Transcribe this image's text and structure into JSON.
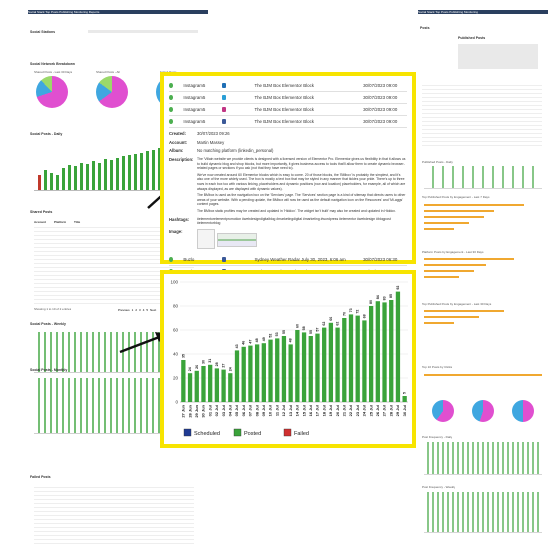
{
  "left_page": {
    "nav_text": "Social Stack    Top Posts    Publishing    Monitoring    Reports",
    "section_title": "Social Stations",
    "pie_section_title": "Social Network Breakdown",
    "pie_titles": [
      "Shared Posts - Last 30 Days",
      "Shared Posts - All",
      "Failed Posts"
    ],
    "chart1_title": "Social Posts - Daily",
    "table1_title": "Shared Posts",
    "table_columns": [
      "Account",
      "Platform",
      "Title",
      "Scheduled"
    ],
    "chart2_title": "Social Posts - Weekly",
    "chart3_title": "Social Posts - Monthly",
    "table2_title": "Failed Posts",
    "showing_text": "Showing 1 to 10 of 2 entries",
    "pager": [
      "Previous",
      "1",
      "2",
      "3",
      "4",
      "5",
      "Next"
    ]
  },
  "right_page": {
    "nav_text": "Social Stack    Top Posts    Publishing    Monitoring",
    "section_title": "Posts",
    "sub_title": "Published Posts",
    "chart_titles": [
      "Published Posts - Daily",
      "Top Published Posts by Engagement - Last 7 Days",
      "Platform Posts by Engagement - Last 30 Days",
      "Top Published Posts by Engagement - Last 30 Days",
      "Top 10 Posts by Clicks",
      "Post Frequency - Daily",
      "Post Frequency - Weekly"
    ]
  },
  "zoom_top": {
    "rows_top": [
      {
        "account": "Instagram5",
        "title": "The BJM Box Elementor Block",
        "date": "30/07/2023 09:00"
      },
      {
        "account": "Instagram5",
        "title": "The BJM Box Elementor Block",
        "date": "30/07/2023 09:00"
      },
      {
        "account": "Instagram5",
        "title": "The BJM Box Elementor Block",
        "date": "30/07/2023 09:00"
      },
      {
        "account": "Instagram5",
        "title": "The BJM Box Elementor Block",
        "date": "30/07/2023 09:00"
      }
    ],
    "details": {
      "created_label": "Created:",
      "created_value": "30/07/2023 09:26",
      "account_label": "Account:",
      "account_value": "Martin Massey",
      "album_label": "Album:",
      "album_value": "No matching platform (linkedin_personal)",
      "description_label": "Description:",
      "description_p1": "The 'Villain website we provide clients is designed with a licensed version of Elementor Pro. Elementor gives us flexibility in that it allows us to build dynamic blog and shop blocks, but more importantly, it gives business access to tools that'll allow them to create dynamic browser-related pages or sections if you ask (not that they have need to).",
      "description_p2": "We've now created around 60 Elementor blocks which is easy to come. 20 of those blocks, the 'BMbox' is probably the simplest, and it's also one of the more widely used. The box is mostly a text box that may be styled in any manner that tickles your pride. There's up to three rows in each box too with various linking, placeholders and dynamic positions (row and location) placeholders, for example, all of which are always displayed, as are displayed with dynamic values).",
      "description_p3": "The BMbox is used as the navigation box on the 'Services' page. The 'Services' section page is a kind of sitemap that directs users to other areas of your website. With a pending update, the BMbox will now be used as the default navigation icon on the Resources' and 'Mi-aggs' content pages.",
      "description_p4": "The BMbox static profiles may be created and updated in 'Hiddox'. The widget isn't built' may also be created and updated in Hiddox.",
      "hashtags_label": "Hashtags:",
      "hashtags_value": "#elementorelementpromotion #webdesigndigitalblog #marketingdigital #marketing #wordpress #elementor #webdesign #blogpost #elementorblog",
      "image_label": "Image:"
    },
    "rows_bottom": [
      {
        "account": "Buzlo",
        "title": "Sydney Weather Radar July 30, 2023, 6:06 am",
        "date": "30/07/2023 06:30"
      },
      {
        "account": "Buzlo",
        "title": "Sydney Weather Radar July 30, 2023, 2:28 am",
        "date": "30/07/2023 02:30"
      }
    ]
  },
  "chart_data": {
    "type": "bar",
    "title": "",
    "xlabel": "",
    "ylabel": "",
    "ylim": [
      0,
      100
    ],
    "yticks": [
      0,
      20,
      40,
      60,
      80,
      100
    ],
    "categories": [
      "27 Jun",
      "28 Jun",
      "29 Jun",
      "30 Jun",
      "01 Jul",
      "02 Jul",
      "03 Jul",
      "04 Jul",
      "05 Jul",
      "06 Jul",
      "07 Jul",
      "08 Jul",
      "09 Jul",
      "10 Jul",
      "11 Jul",
      "12 Jul",
      "13 Jul",
      "14 Jul",
      "15 Jul",
      "16 Jul",
      "17 Jul",
      "18 Jul",
      "19 Jul",
      "20 Jul",
      "21 Jul",
      "22 Jul",
      "23 Jul",
      "24 Jul",
      "25 Jul",
      "26 Jul",
      "27 Jul",
      "28 Jul",
      "29 Jul",
      "30 Jul"
    ],
    "series": [
      {
        "name": "Scheduled",
        "color": "#1f3a93",
        "values": [
          0,
          0,
          0,
          0,
          0,
          0,
          0,
          0,
          0,
          0,
          0,
          0,
          0,
          0,
          0,
          0,
          0,
          0,
          0,
          0,
          0,
          0,
          0,
          0,
          0,
          0,
          0,
          0,
          0,
          0,
          0,
          0,
          0,
          0
        ]
      },
      {
        "name": "Posted",
        "color": "#3aa33a",
        "values": [
          35,
          24,
          26,
          30,
          31,
          28,
          27,
          24,
          43,
          46,
          47,
          48,
          49,
          52,
          53,
          55,
          48,
          60,
          58,
          55,
          57,
          62,
          66,
          62,
          70,
          73,
          72,
          68,
          80,
          84,
          83,
          85,
          92,
          5
        ]
      },
      {
        "name": "Failed",
        "color": "#d03030",
        "values": [
          0,
          0,
          0,
          0,
          0,
          0,
          0,
          0,
          0,
          0,
          0,
          0,
          0,
          0,
          0,
          0,
          0,
          0,
          0,
          0,
          0,
          0,
          0,
          0,
          0,
          0,
          0,
          0,
          0,
          0,
          0,
          0,
          0,
          0
        ]
      }
    ],
    "legend_placement": "bottom"
  },
  "colors": {
    "highlight": "#f7e400",
    "posted": "#3aa33a",
    "scheduled": "#1f3a93",
    "failed": "#d03030",
    "arrow": "#111111"
  }
}
